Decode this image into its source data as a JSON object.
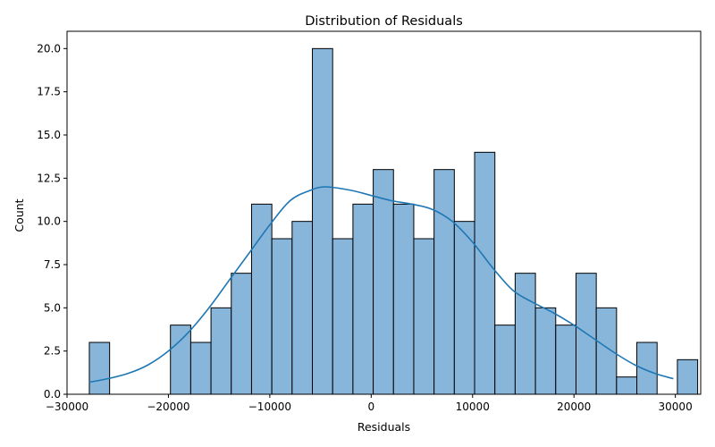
{
  "chart_data": {
    "type": "bar",
    "title": "Distribution of Residuals",
    "xlabel": "Residuals",
    "ylabel": "Count",
    "xlim": [
      -30000,
      32500
    ],
    "ylim": [
      0,
      21
    ],
    "xticks": [
      -30000,
      -20000,
      -10000,
      0,
      10000,
      20000,
      30000
    ],
    "xtick_labels": [
      "−30000",
      "−20000",
      "−10000",
      "0",
      "10000",
      "20000",
      "30000"
    ],
    "yticks": [
      0,
      2.5,
      5,
      7.5,
      10,
      12.5,
      15,
      17.5,
      20
    ],
    "ytick_labels": [
      "0.0",
      "2.5",
      "5.0",
      "7.5",
      "10.0",
      "12.5",
      "15.0",
      "17.5",
      "20.0"
    ],
    "bin_start": -27800,
    "bin_width": 2000,
    "counts": [
      3,
      0,
      0,
      0,
      4,
      3,
      5,
      7,
      11,
      9,
      10,
      20,
      9,
      11,
      13,
      11,
      9,
      13,
      10,
      14,
      4,
      7,
      5,
      4,
      7,
      5,
      1,
      3,
      0,
      2
    ],
    "bar_color": "#87b6da",
    "line_color": "#1f77b4",
    "kde": {
      "x": [
        -27800,
        -26000,
        -24000,
        -22000,
        -20000,
        -18000,
        -16000,
        -14000,
        -12000,
        -10000,
        -8000,
        -6000,
        -4500,
        -2000,
        0,
        2000,
        4000,
        6000,
        8000,
        10000,
        12000,
        14000,
        16000,
        18000,
        20000,
        22000,
        24000,
        26000,
        28000,
        29800
      ],
      "y": [
        0.7,
        0.9,
        1.2,
        1.7,
        2.5,
        3.6,
        5.0,
        6.6,
        8.2,
        9.8,
        11.2,
        11.8,
        12.0,
        11.8,
        11.5,
        11.2,
        11.0,
        10.7,
        10.0,
        8.8,
        7.3,
        6.0,
        5.3,
        4.7,
        4.0,
        3.2,
        2.4,
        1.7,
        1.2,
        0.9
      ]
    }
  }
}
